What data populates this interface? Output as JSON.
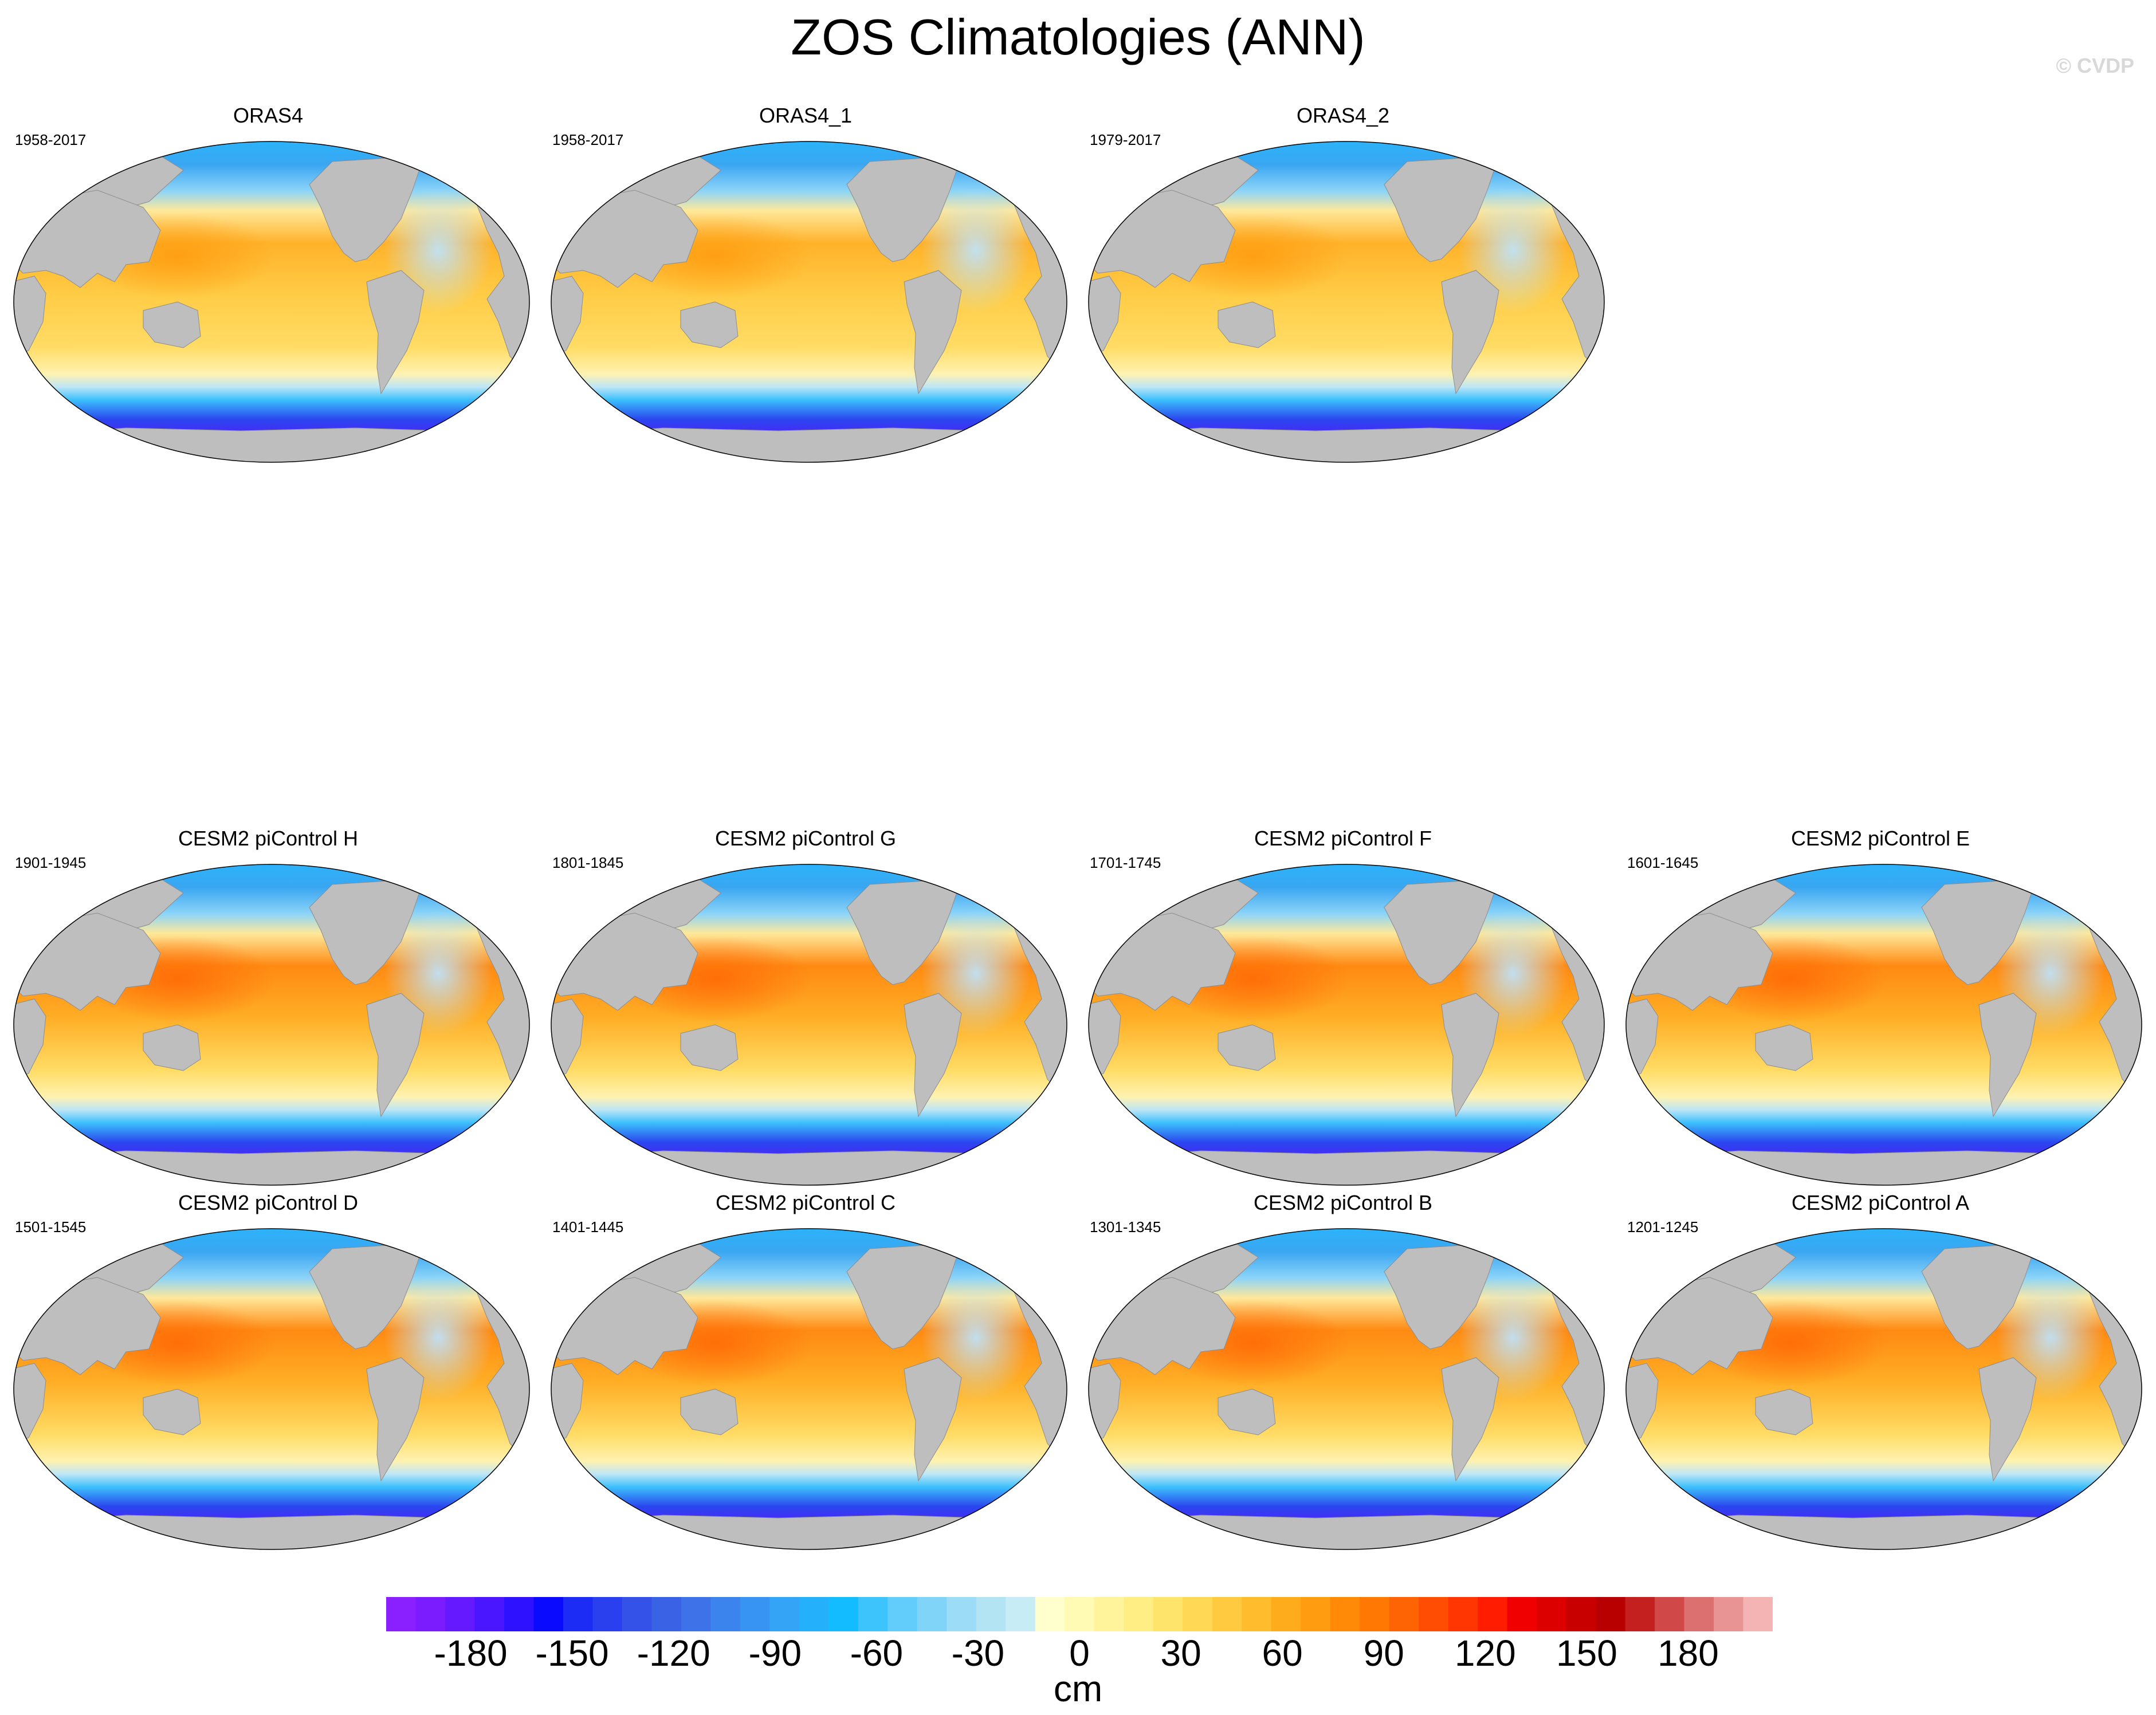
{
  "figure": {
    "title": "ZOS Climatologies (ANN)",
    "watermark": "© CVDP"
  },
  "panels": [
    {
      "title": "ORAS4",
      "years": "1958-2017",
      "variant": "obs"
    },
    {
      "title": "ORAS4_1",
      "years": "1958-2017",
      "variant": "obs"
    },
    {
      "title": "ORAS4_2",
      "years": "1979-2017",
      "variant": "obs"
    },
    {
      "title": "CESM2 piControl H",
      "years": "1901-1945",
      "variant": "model"
    },
    {
      "title": "CESM2 piControl G",
      "years": "1801-1845",
      "variant": "model"
    },
    {
      "title": "CESM2 piControl F",
      "years": "1701-1745",
      "variant": "model"
    },
    {
      "title": "CESM2 piControl E",
      "years": "1601-1645",
      "variant": "model"
    },
    {
      "title": "CESM2 piControl D",
      "years": "1501-1545",
      "variant": "model"
    },
    {
      "title": "CESM2 piControl C",
      "years": "1401-1445",
      "variant": "model"
    },
    {
      "title": "CESM2 piControl B",
      "years": "1301-1345",
      "variant": "model"
    },
    {
      "title": "CESM2 piControl A",
      "years": "1201-1245",
      "variant": "model"
    }
  ],
  "colorbar": {
    "units": "cm",
    "ticks": [
      "-180",
      "-150",
      "-120",
      "-90",
      "-60",
      "-30",
      "0",
      "30",
      "60",
      "90",
      "120",
      "150",
      "180"
    ],
    "tick_values": [
      -180,
      -150,
      -120,
      -90,
      -60,
      -30,
      0,
      30,
      60,
      90,
      120,
      150,
      180
    ],
    "range": [
      -205,
      205
    ],
    "step": 10,
    "colors": [
      "#8a1fff",
      "#7a1cff",
      "#6419ff",
      "#4a16ff",
      "#2e12ff",
      "#0a0aff",
      "#1c2cf4",
      "#2a40ee",
      "#3452e8",
      "#3a62e4",
      "#3e72e8",
      "#3b84ee",
      "#3894f2",
      "#33a4f6",
      "#24b0fa",
      "#12bcfe",
      "#3ec4fc",
      "#62ccfa",
      "#80d4f8",
      "#9cdcf6",
      "#b2e4f4",
      "#c8ecf6",
      "#fffecc",
      "#fffab4",
      "#fff49c",
      "#ffee84",
      "#ffe46c",
      "#ffd856",
      "#ffca40",
      "#ffbc2c",
      "#ffac1c",
      "#ff9c10",
      "#ff8a08",
      "#ff7804",
      "#ff6404",
      "#ff4e04",
      "#ff3602",
      "#ff1c00",
      "#f00000",
      "#dc0000",
      "#c80000",
      "#b80000",
      "#c42020",
      "#d04848",
      "#dc7070",
      "#e89494",
      "#f4b4b4"
    ]
  }
}
